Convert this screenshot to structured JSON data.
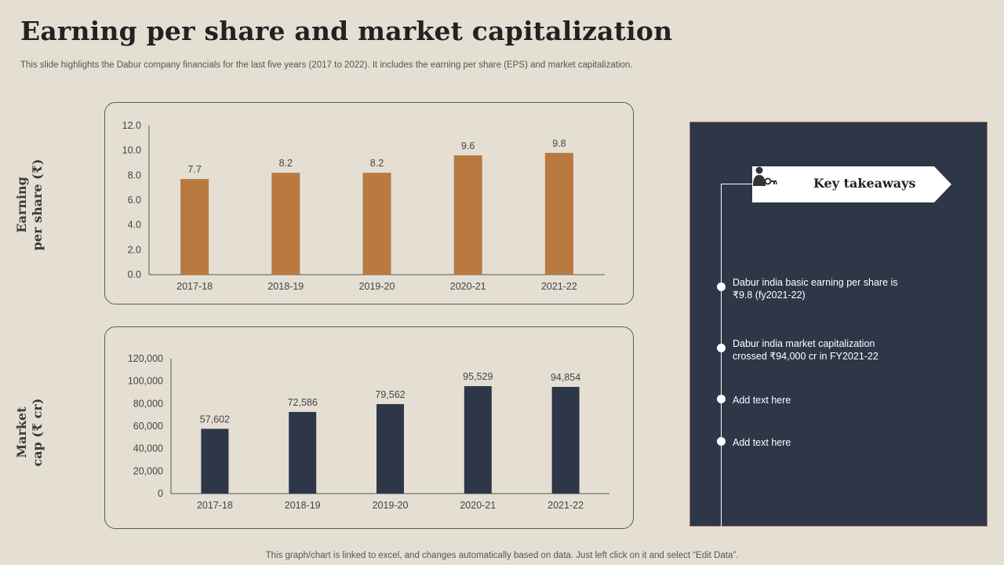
{
  "slide": {
    "title": "Earning per share and market capitalization",
    "subtitle": "This slide highlights the Dabur company financials for the last five years (2017 to 2022). It includes the earning per share (EPS) and market capitalization.",
    "footer": "This graph/chart is linked to excel, and changes automatically based on data. Just left click on it and select “Edit Data”."
  },
  "chart_data": [
    {
      "type": "bar",
      "ylabel_lines": [
        "Earning",
        "per share (₹)"
      ],
      "categories": [
        "2017-18",
        "2018-19",
        "2019-20",
        "2020-21",
        "2021-22"
      ],
      "values": [
        7.7,
        8.2,
        8.2,
        9.6,
        9.8
      ],
      "data_labels": [
        "7.7",
        "8.2",
        "8.2",
        "9.6",
        "9.8"
      ],
      "ylim": [
        0,
        12
      ],
      "yticks": [
        0,
        2,
        4,
        6,
        8,
        10,
        12
      ],
      "ytick_labels": [
        "0.0",
        "2.0",
        "4.0",
        "6.0",
        "8.0",
        "10.0",
        "12.0"
      ],
      "bar_color": "#b87a40",
      "grid": false
    },
    {
      "type": "bar",
      "ylabel_lines": [
        "Market",
        "cap (₹ cr)"
      ],
      "categories": [
        "2017-18",
        "2018-19",
        "2019-20",
        "2020-21",
        "2021-22"
      ],
      "values": [
        57602,
        72586,
        79562,
        95529,
        94854
      ],
      "data_labels": [
        "57,602",
        "72,586",
        "79,562",
        "95,529",
        "94,854"
      ],
      "ylim": [
        0,
        120000
      ],
      "yticks": [
        0,
        20000,
        40000,
        60000,
        80000,
        100000,
        120000
      ],
      "ytick_labels": [
        "0",
        "20,000",
        "40,000",
        "60,000",
        "80,000",
        "100,000",
        "120,000"
      ],
      "bar_color": "#2d3748",
      "grid": false
    }
  ],
  "takeaways": {
    "heading": "Key takeaways",
    "icon": "person-key-icon",
    "items": [
      "Dabur india basic earning per share is ₹9.8 (fy2021-22)",
      "Dabur india market capitalization crossed ₹94,000 cr in FY2021-22",
      "Add text here",
      "Add text here"
    ]
  },
  "colors": {
    "background": "#e5dfd3",
    "panel": "#2d3748",
    "accent": "#b87a40"
  }
}
